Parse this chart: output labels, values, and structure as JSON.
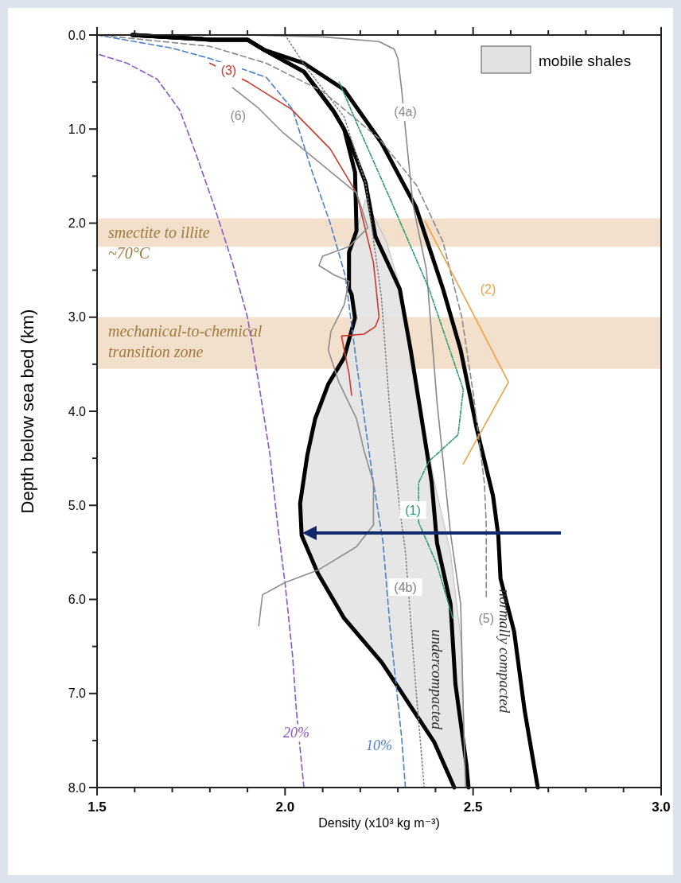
{
  "chart_data": {
    "type": "line",
    "xlabel": "Density (x10³ kg m⁻³)",
    "ylabel": "Depth below sea bed (km)",
    "xlim": [
      1.5,
      3.0
    ],
    "ylim": [
      8,
      0
    ],
    "xticks": [
      1.5,
      {
        "value": 1.6,
        "label": null
      },
      {
        "value": 1.7,
        "label": null
      },
      {
        "value": 1.8,
        "label": null
      },
      {
        "value": 1.9,
        "label": null
      },
      {
        "value": 2,
        "label": "2.0"
      },
      {
        "value": 2.1,
        "label": null
      },
      {
        "value": 2.2,
        "label": null
      },
      {
        "value": 2.3,
        "label": null
      },
      {
        "value": 2.4,
        "label": null
      },
      2.5,
      {
        "value": 2.6,
        "label": null
      },
      {
        "value": 2.7,
        "label": null
      },
      {
        "value": 2.8,
        "label": null
      },
      {
        "value": 2.9,
        "label": null
      },
      {
        "value": 3,
        "label": "3.0"
      }
    ],
    "yticks": [
      {
        "value": 0,
        "label": "0.0"
      },
      {
        "value": 0.5,
        "label": null
      },
      {
        "value": 1,
        "label": "1.0"
      },
      {
        "value": 1.5,
        "label": null
      },
      {
        "value": 2,
        "label": "2.0"
      },
      {
        "value": 2.5,
        "label": null
      },
      {
        "value": 3,
        "label": "3.0"
      },
      {
        "value": 3.5,
        "label": null
      },
      {
        "value": 4,
        "label": "4.0"
      },
      {
        "value": 4.5,
        "label": null
      },
      {
        "value": 5,
        "label": "5.0"
      },
      {
        "value": 5.5,
        "label": null
      },
      {
        "value": 6,
        "label": "6.0"
      },
      {
        "value": 6.5,
        "label": null
      },
      {
        "value": 7,
        "label": "7.0"
      },
      {
        "value": 7.5,
        "label": null
      },
      {
        "value": 8,
        "label": "8.0"
      }
    ],
    "legend": "top right",
    "bands": [
      {
        "axis": "y",
        "from": 1.95,
        "to": 2.25,
        "label": "smectite to illite\n~70°C",
        "color": "#f3e0cc"
      },
      {
        "axis": "y",
        "from": 3.0,
        "to": 3.55,
        "label": "mechanical-to-chemical\ntransition zone",
        "color": "#f3e0cc"
      }
    ],
    "series": [
      {
        "type": "area",
        "name": "mobile shales",
        "color": "#e2e2e2",
        "x": [
          2.214,
          2.19,
          2.17,
          2.17,
          2.177,
          2.186,
          2.157,
          2.115,
          2.08,
          2.059,
          2.04,
          2.044,
          2.087,
          2.157,
          2.257,
          2.277,
          2.397,
          2.45,
          2.48,
          2.47,
          2.44,
          2.4,
          2.36,
          2.33,
          2.3,
          2.27,
          2.214
        ],
        "values": [
          1.75,
          2.08,
          2.31,
          2.7,
          2.76,
          3.01,
          3.43,
          3.71,
          4.08,
          4.47,
          4.98,
          5.32,
          5.72,
          6.2,
          6.67,
          6.79,
          7.52,
          8.0,
          8.0,
          6.5,
          5.5,
          4.8,
          4.0,
          3.3,
          2.6,
          2.2,
          1.75
        ]
      },
      {
        "name": "20%",
        "color": "#8a55c8",
        "line_style": "dashed",
        "x": [
          1.5,
          1.58,
          1.66,
          1.72,
          1.76,
          1.81,
          1.86,
          1.9,
          1.93,
          1.96,
          1.98,
          2.0,
          2.02,
          2.03,
          2.05
        ],
        "values": [
          0.2,
          0.3,
          0.47,
          0.8,
          1.23,
          1.8,
          2.42,
          3.0,
          3.7,
          4.47,
          5.2,
          5.83,
          6.6,
          7.18,
          8.0
        ]
      },
      {
        "name": "10%",
        "color": "#4a80c8",
        "line_style": "dashed",
        "x": [
          1.5,
          1.6,
          1.7,
          1.8,
          1.9,
          1.95,
          2.02,
          2.07,
          2.12,
          2.16,
          2.19,
          2.235,
          2.26,
          2.28,
          2.31,
          2.32
        ],
        "values": [
          0.0,
          0.07,
          0.14,
          0.25,
          0.38,
          0.45,
          0.79,
          1.43,
          2.0,
          2.56,
          3.49,
          4.76,
          5.38,
          6.33,
          7.47,
          8.0
        ]
      },
      {
        "name": "(4b)",
        "color": "#808080",
        "line_style": "dotted",
        "x": [
          2.0,
          2.05,
          2.157,
          2.214,
          2.256,
          2.277,
          2.305,
          2.32,
          2.347,
          2.37
        ],
        "values": [
          0.0,
          0.31,
          0.87,
          1.57,
          2.78,
          3.91,
          5.04,
          5.49,
          6.9,
          8.0
        ]
      },
      {
        "name": "(4a)",
        "color": "#888888",
        "line_style": "solid",
        "x": [
          1.9,
          2.1,
          2.25,
          2.29,
          2.3,
          2.31,
          2.32,
          2.34,
          2.376,
          2.404,
          2.44,
          2.467,
          2.474,
          2.48
        ],
        "values": [
          0.0,
          0.02,
          0.07,
          0.15,
          0.25,
          0.58,
          1.0,
          1.8,
          2.5,
          3.9,
          5.3,
          6.05,
          7.2,
          8.0
        ]
      },
      {
        "name": "(5)",
        "color": "#888888",
        "line_style": "dashed",
        "x": [
          1.5,
          1.8,
          1.95,
          2.1,
          2.25,
          2.35,
          2.42,
          2.47,
          2.5,
          2.53,
          2.535,
          2.535
        ],
        "values": [
          0.0,
          0.12,
          0.3,
          0.6,
          1.1,
          1.6,
          2.2,
          3.0,
          3.8,
          4.76,
          5.2,
          5.97
        ]
      },
      {
        "name": "(1)",
        "color": "#2a9a70",
        "line_style": "dashdot",
        "x": [
          2.144,
          2.193,
          2.277,
          2.383,
          2.474,
          2.46,
          2.383,
          2.355,
          2.355,
          2.404,
          2.446
        ],
        "values": [
          0.5,
          0.96,
          1.72,
          2.7,
          3.77,
          4.25,
          4.53,
          4.76,
          5.18,
          5.63,
          6.2
        ]
      },
      {
        "name": "(2)",
        "color": "#f0a040",
        "line_style": "solid",
        "x": [
          2.372,
          2.44,
          2.594,
          2.474
        ],
        "values": [
          1.98,
          2.5,
          3.69,
          4.56
        ]
      },
      {
        "name": "(3)",
        "color": "#c8382c",
        "line_style": "solid",
        "x": [
          1.8,
          1.897,
          2.017,
          2.12,
          2.19,
          2.235,
          2.25,
          2.24,
          2.21,
          2.15,
          2.155,
          2.17,
          2.177
        ],
        "values": [
          0.3,
          0.49,
          0.79,
          1.21,
          1.68,
          2.42,
          3.0,
          3.1,
          3.18,
          3.2,
          3.3,
          3.6,
          3.83
        ]
      },
      {
        "name": "(6)",
        "color": "#8c8c8c",
        "line_style": "solid",
        "x": [
          1.86,
          1.93,
          1.995,
          2.19,
          2.2,
          2.22,
          2.17,
          2.1,
          2.09,
          2.13,
          2.17,
          2.157,
          2.122,
          2.115,
          2.143,
          2.19,
          2.21,
          2.235,
          2.235,
          2.19,
          2.087,
          2.0,
          1.94,
          1.93
        ],
        "values": [
          0.56,
          0.78,
          1.04,
          1.68,
          1.8,
          2.05,
          2.25,
          2.35,
          2.45,
          2.55,
          2.62,
          2.87,
          3.15,
          3.35,
          3.69,
          4.08,
          4.42,
          4.76,
          5.21,
          5.44,
          5.69,
          5.82,
          5.95,
          6.28
        ]
      },
      {
        "color": "#000000",
        "line_style": "solid",
        "x": [
          1.594,
          1.805,
          1.9,
          1.945,
          2.05,
          2.129,
          2.157,
          2.186,
          2.19,
          2.17,
          2.17,
          2.177,
          2.186,
          2.157,
          2.115,
          2.08,
          2.059,
          2.04,
          2.044,
          2.087,
          2.157,
          2.257,
          2.277,
          2.397,
          2.45
        ],
        "values": [
          0.0,
          0.05,
          0.05,
          0.16,
          0.39,
          0.81,
          1.0,
          1.46,
          2.08,
          2.31,
          2.7,
          2.76,
          3.01,
          3.43,
          3.71,
          4.08,
          4.47,
          4.98,
          5.32,
          5.72,
          6.2,
          6.67,
          6.79,
          7.52,
          8.0
        ]
      },
      {
        "name": "undercompacted",
        "color": "#000000",
        "line_style": "solid",
        "x": [
          1.594,
          1.805,
          1.9,
          1.945,
          2.05,
          2.129,
          2.157,
          2.171,
          2.214,
          2.24,
          2.305,
          2.334,
          2.362,
          2.39,
          2.404,
          2.44,
          2.453,
          2.482,
          2.488
        ],
        "values": [
          0.0,
          0.05,
          0.05,
          0.16,
          0.39,
          0.81,
          1.0,
          1.12,
          1.57,
          2.14,
          2.7,
          3.35,
          4.05,
          4.76,
          5.4,
          6.05,
          6.9,
          7.75,
          8.0
        ]
      },
      {
        "name": "normally compacted",
        "color": "#000000",
        "line_style": "solid",
        "x": [
          1.594,
          1.805,
          1.9,
          1.945,
          2.05,
          2.157,
          2.257,
          2.348,
          2.42,
          2.467,
          2.51,
          2.553,
          2.567,
          2.573,
          2.609,
          2.637,
          2.672
        ],
        "values": [
          0.0,
          0.05,
          0.05,
          0.16,
          0.3,
          0.58,
          1.15,
          1.83,
          2.7,
          3.35,
          4.19,
          4.9,
          5.32,
          5.78,
          6.34,
          7.18,
          8.0
        ]
      }
    ]
  }
}
